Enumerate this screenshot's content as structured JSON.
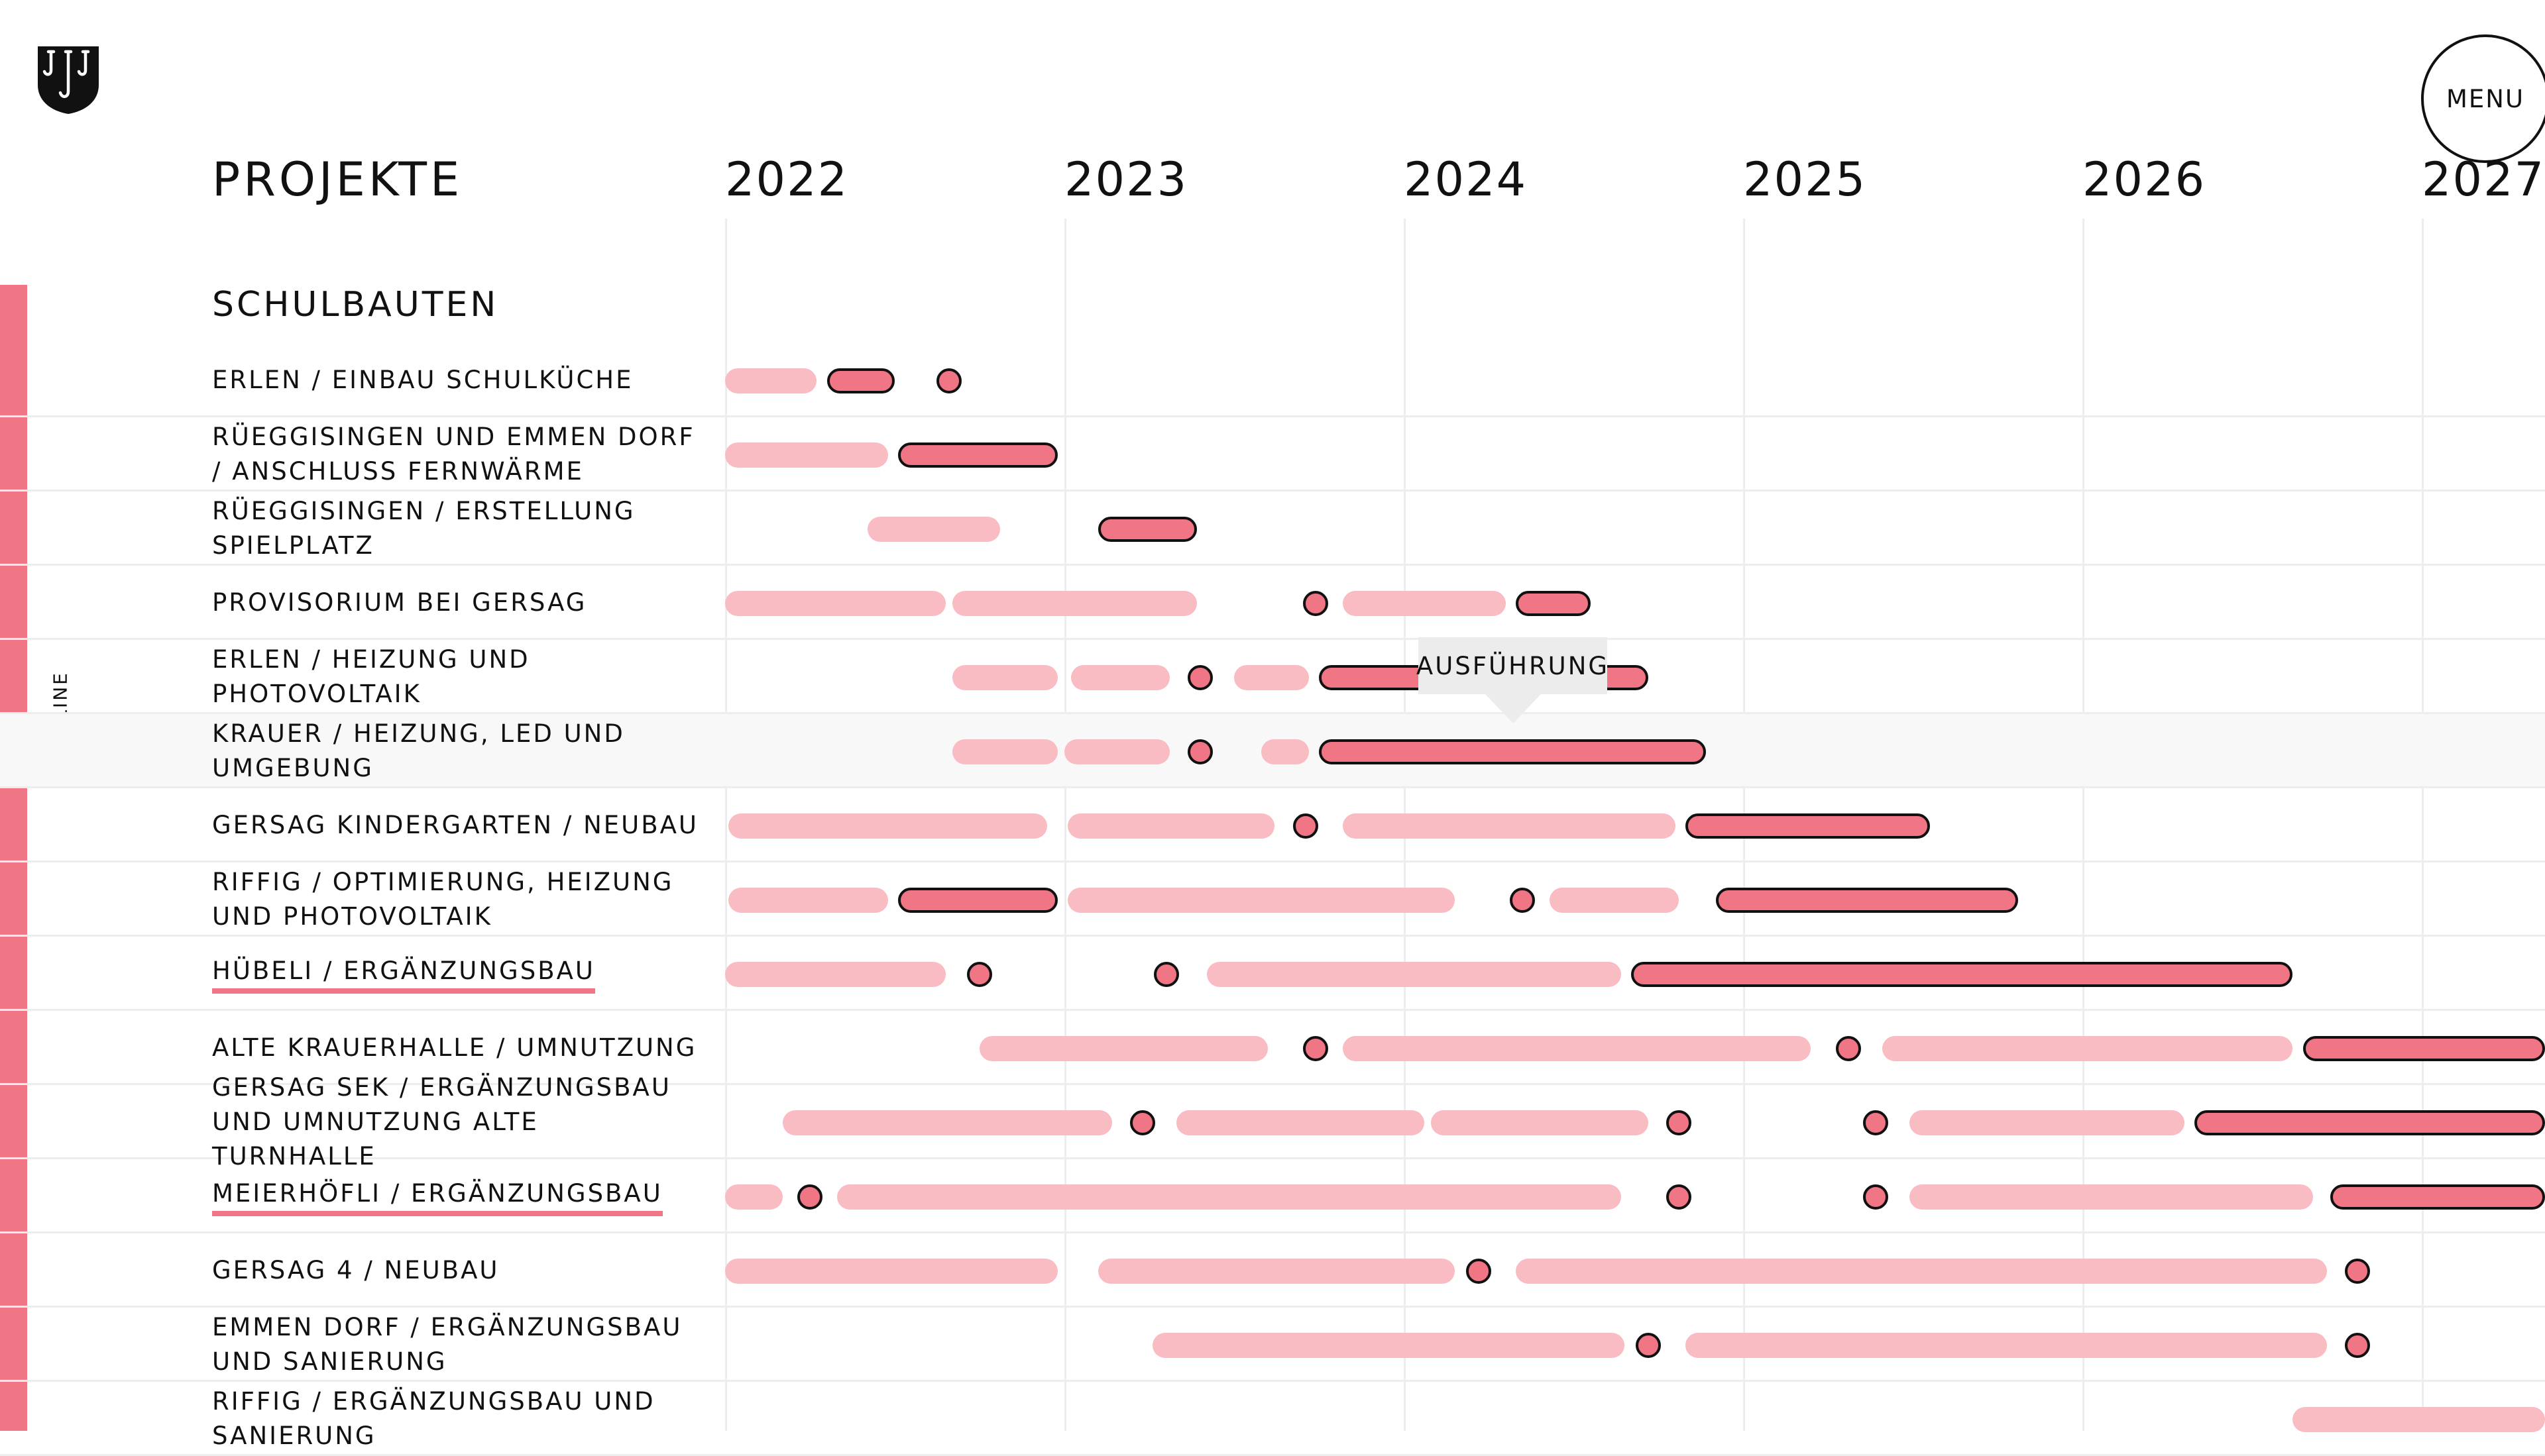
{
  "header": {
    "logo_icon": "coat-of-arms-hooks-icon",
    "menu_label": "MENU",
    "side_label": "TIMELINE",
    "title": "PROJEKTE",
    "years": [
      "2022",
      "2023",
      "2024",
      "2025",
      "2026",
      "2027"
    ]
  },
  "section": {
    "title": "SCHULBAUTEN"
  },
  "tooltip": {
    "label": "AUSFÜHRUNG"
  },
  "colors": {
    "accent": "#f07585",
    "light": "#f9bcc3",
    "outline": "#111111",
    "grid": "#ededed"
  },
  "projects": [
    {
      "label": "ERLEN / EINBAU SCHULKÜCHE",
      "items": [
        [
          "light",
          2022.0,
          2022.27
        ],
        [
          "dark",
          2022.3,
          2022.5
        ],
        [
          "dot",
          2022.66
        ]
      ]
    },
    {
      "label": "RÜEGGISINGEN UND EMMEN DORF / ANSCHLUSS FERNWÄRME",
      "items": [
        [
          "light",
          2022.0,
          2022.48
        ],
        [
          "dark",
          2022.51,
          2022.98
        ]
      ]
    },
    {
      "label": "RÜEGGISINGEN / ERSTELLUNG SPIELPLATZ",
      "items": [
        [
          "light",
          2022.42,
          2022.81
        ],
        [
          "dark",
          2023.1,
          2023.39
        ]
      ]
    },
    {
      "label": "PROVISORIUM BEI GERSAG",
      "items": [
        [
          "light",
          2022.0,
          2022.65
        ],
        [
          "light",
          2022.67,
          2023.39
        ],
        [
          "dot",
          2023.74
        ],
        [
          "light",
          2023.82,
          2024.3
        ],
        [
          "dark",
          2024.33,
          2024.55
        ]
      ]
    },
    {
      "label": "ERLEN / HEIZUNG UND PHOTOVOLTAIK",
      "items": [
        [
          "light",
          2022.67,
          2022.98
        ],
        [
          "light",
          2023.02,
          2023.31
        ],
        [
          "dot",
          2023.4
        ],
        [
          "light",
          2023.5,
          2023.72
        ],
        [
          "dark",
          2023.75,
          2024.72
        ]
      ]
    },
    {
      "label": "KRAUER / HEIZUNG, LED UND UMGEBUNG",
      "highlight": true,
      "items": [
        [
          "light",
          2022.67,
          2022.98
        ],
        [
          "light",
          2023.0,
          2023.31
        ],
        [
          "dot",
          2023.4
        ],
        [
          "light",
          2023.58,
          2023.72
        ],
        [
          "dark",
          2023.75,
          2024.89
        ]
      ]
    },
    {
      "label": "GERSAG KINDERGARTEN / NEUBAU",
      "items": [
        [
          "light",
          2022.01,
          2022.95
        ],
        [
          "light",
          2023.01,
          2023.62
        ],
        [
          "dot",
          2023.71
        ],
        [
          "light",
          2023.82,
          2024.8
        ],
        [
          "dark",
          2024.83,
          2025.55
        ]
      ]
    },
    {
      "label": "RIFFIG / OPTIMIERUNG, HEIZUNG UND PHOTOVOLTAIK",
      "items": [
        [
          "light",
          2022.01,
          2022.48
        ],
        [
          "dark",
          2022.51,
          2022.98
        ],
        [
          "light",
          2023.01,
          2024.15
        ],
        [
          "dot",
          2024.35
        ],
        [
          "light",
          2024.43,
          2024.81
        ],
        [
          "dark",
          2024.92,
          2025.81
        ]
      ]
    },
    {
      "label": "HÜBELI / ERGÄNZUNGSBAU",
      "underline": true,
      "items": [
        [
          "light",
          2022.0,
          2022.65
        ],
        [
          "dot",
          2022.75
        ],
        [
          "dot",
          2023.3
        ],
        [
          "light",
          2023.42,
          2024.64
        ],
        [
          "dark",
          2024.67,
          2026.62
        ]
      ]
    },
    {
      "label": "ALTE KRAUERHALLE / UMNUTZUNG",
      "items": [
        [
          "light",
          2022.75,
          2023.6
        ],
        [
          "dot",
          2023.74
        ],
        [
          "light",
          2023.82,
          2025.2
        ],
        [
          "dot",
          2025.31
        ],
        [
          "light",
          2025.41,
          2026.62
        ],
        [
          "dark",
          2026.65,
          2027.5
        ]
      ]
    },
    {
      "label": "GERSAG SEK / ERGÄNZUNGSBAU UND UMNUTZUNG ALTE TURNHALLE",
      "items": [
        [
          "light",
          2022.17,
          2023.14
        ],
        [
          "dot",
          2023.23
        ],
        [
          "light",
          2023.33,
          2024.06
        ],
        [
          "light",
          2024.08,
          2024.72
        ],
        [
          "dot",
          2024.81
        ],
        [
          "dot",
          2025.39
        ],
        [
          "light",
          2025.49,
          2026.3
        ],
        [
          "dark",
          2026.33,
          2027.5
        ]
      ]
    },
    {
      "label": "MEIERHÖFLI / ERGÄNZUNGSBAU",
      "underline": true,
      "items": [
        [
          "light",
          2022.0,
          2022.17
        ],
        [
          "dot",
          2022.25
        ],
        [
          "light",
          2022.33,
          2024.64
        ],
        [
          "dot",
          2024.81
        ],
        [
          "dot",
          2025.39
        ],
        [
          "light",
          2025.49,
          2026.68
        ],
        [
          "dark",
          2026.73,
          2027.5
        ]
      ]
    },
    {
      "label": "GERSAG 4 / NEUBAU",
      "items": [
        [
          "light",
          2022.0,
          2022.98
        ],
        [
          "light",
          2023.1,
          2024.15
        ],
        [
          "dot",
          2024.22
        ],
        [
          "light",
          2024.33,
          2026.72
        ],
        [
          "dot",
          2026.81
        ]
      ]
    },
    {
      "label": "EMMEN DORF / ERGÄNZUNGSBAU UND SANIERUNG",
      "items": [
        [
          "light",
          2023.26,
          2024.65
        ],
        [
          "dot",
          2024.72
        ],
        [
          "light",
          2024.83,
          2026.72
        ],
        [
          "dot",
          2026.81
        ]
      ]
    },
    {
      "label": "RIFFIG / ERGÄNZUNGSBAU UND SANIERUNG",
      "items": [
        [
          "light",
          2026.62,
          2027.5
        ]
      ]
    }
  ]
}
